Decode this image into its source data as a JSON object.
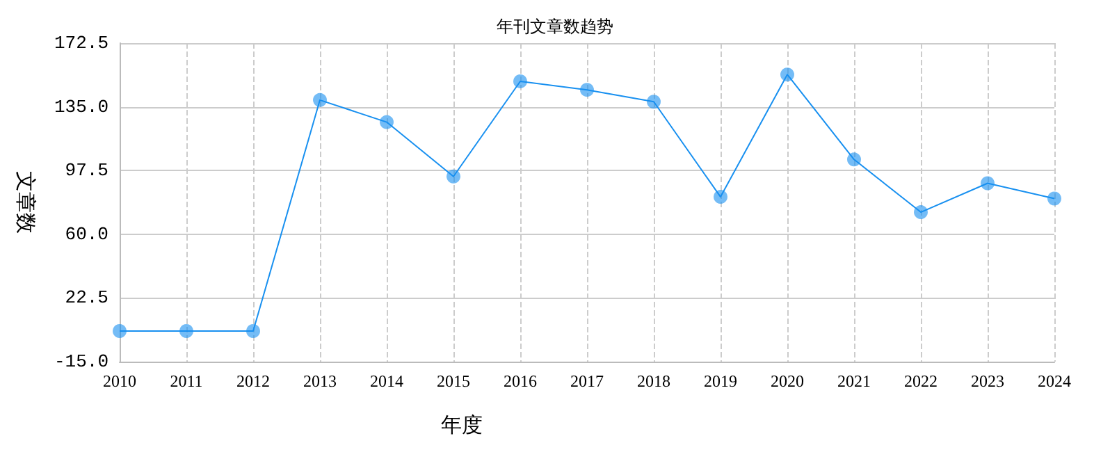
{
  "chart_data": {
    "type": "line",
    "title": "年刊文章数趋势",
    "xlabel": "年度",
    "ylabel": "文章数",
    "categories": [
      "2010",
      "2011",
      "2012",
      "2013",
      "2014",
      "2015",
      "2016",
      "2017",
      "2018",
      "2019",
      "2020",
      "2021",
      "2022",
      "2023",
      "2024"
    ],
    "series": [
      {
        "color": "#1890f0",
        "values": [
          3,
          3,
          3,
          139,
          126,
          94,
          150,
          145,
          138,
          82,
          154,
          104,
          73,
          90,
          81
        ]
      }
    ],
    "ylim": [
      -15,
      172.5
    ],
    "yticks": [
      {
        "value": -15,
        "label": "-15.0"
      },
      {
        "value": 22.5,
        "label": "22.5"
      },
      {
        "value": 60,
        "label": "60.0"
      },
      {
        "value": 97.5,
        "label": "97.5"
      },
      {
        "value": 135,
        "label": "135.0"
      },
      {
        "value": 172.5,
        "label": "172.5"
      }
    ],
    "grid": true,
    "marker": "circle",
    "line_style": "solid"
  }
}
